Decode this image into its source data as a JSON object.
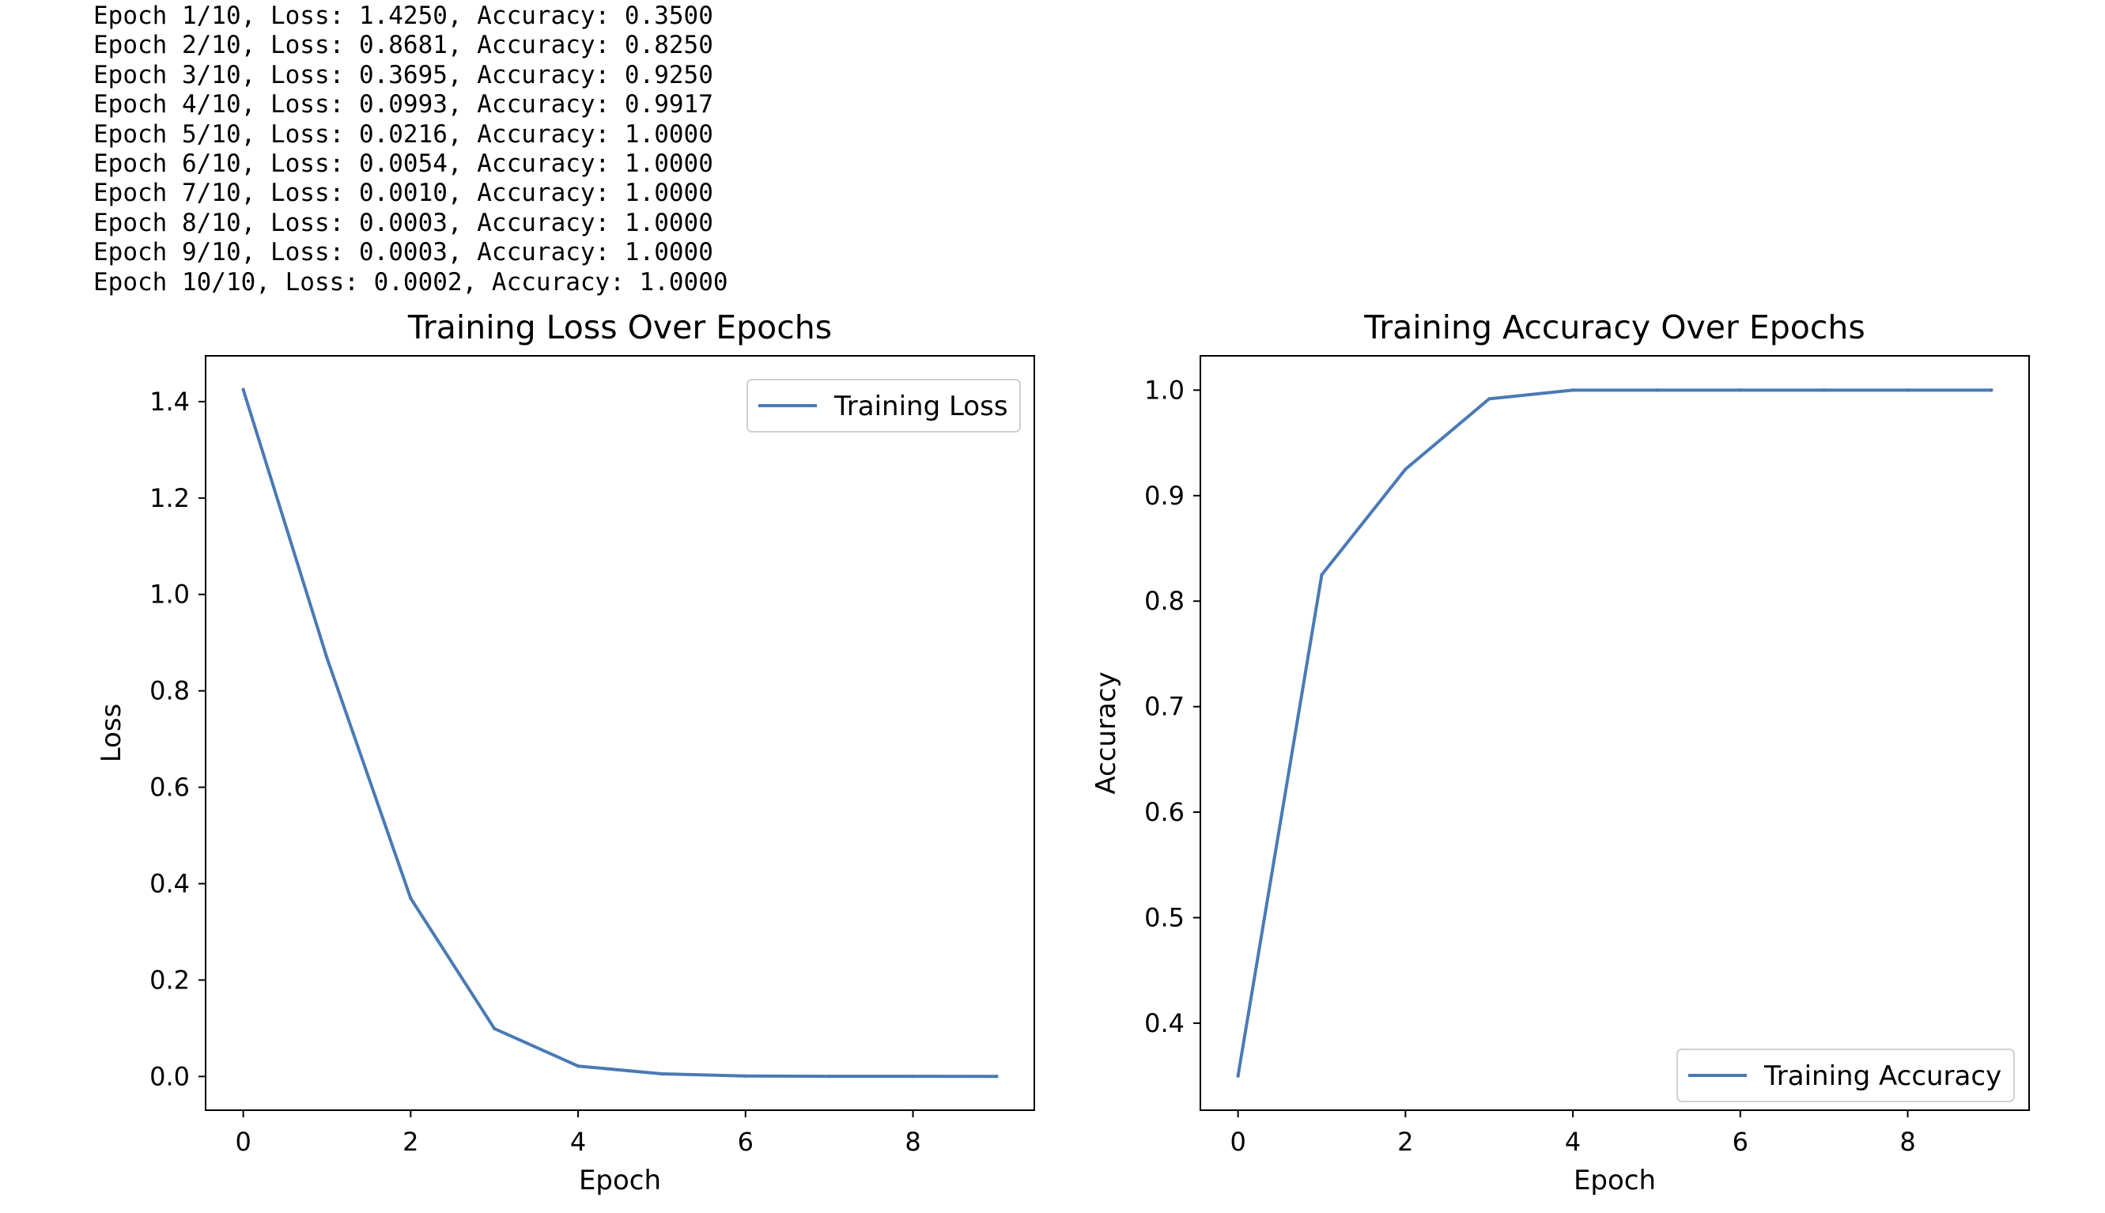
{
  "console": {
    "lines": [
      "Epoch 1/10, Loss: 1.4250, Accuracy: 0.3500",
      "Epoch 2/10, Loss: 0.8681, Accuracy: 0.8250",
      "Epoch 3/10, Loss: 0.3695, Accuracy: 0.9250",
      "Epoch 4/10, Loss: 0.0993, Accuracy: 0.9917",
      "Epoch 5/10, Loss: 0.0216, Accuracy: 1.0000",
      "Epoch 6/10, Loss: 0.0054, Accuracy: 1.0000",
      "Epoch 7/10, Loss: 0.0010, Accuracy: 1.0000",
      "Epoch 8/10, Loss: 0.0003, Accuracy: 1.0000",
      "Epoch 9/10, Loss: 0.0003, Accuracy: 1.0000",
      "Epoch 10/10, Loss: 0.0002, Accuracy: 1.0000"
    ]
  },
  "chart_data": [
    {
      "type": "line",
      "title": "Training Loss Over Epochs",
      "xlabel": "Epoch",
      "ylabel": "Loss",
      "x": [
        0,
        1,
        2,
        3,
        4,
        5,
        6,
        7,
        8,
        9
      ],
      "series": [
        {
          "name": "Training Loss",
          "values": [
            1.425,
            0.8681,
            0.3695,
            0.0993,
            0.0216,
            0.0054,
            0.001,
            0.0003,
            0.0003,
            0.0002
          ],
          "color": "#4a7ab5"
        }
      ],
      "xlim": [
        -0.45,
        9.45
      ],
      "ylim": [
        -0.07,
        1.495
      ],
      "xticks": [
        0,
        2,
        4,
        6,
        8
      ],
      "xtick_labels": [
        "0",
        "2",
        "4",
        "6",
        "8"
      ],
      "yticks": [
        0.0,
        0.2,
        0.4,
        0.6,
        0.8,
        1.0,
        1.2,
        1.4
      ],
      "ytick_labels": [
        "0.0",
        "0.2",
        "0.4",
        "0.6",
        "0.8",
        "1.0",
        "1.2",
        "1.4"
      ],
      "grid": false,
      "legend": "top-right"
    },
    {
      "type": "line",
      "title": "Training Accuracy Over Epochs",
      "xlabel": "Epoch",
      "ylabel": "Accuracy",
      "x": [
        0,
        1,
        2,
        3,
        4,
        5,
        6,
        7,
        8,
        9
      ],
      "series": [
        {
          "name": "Training Accuracy",
          "values": [
            0.35,
            0.825,
            0.925,
            0.9917,
            1.0,
            1.0,
            1.0,
            1.0,
            1.0,
            1.0
          ],
          "color": "#4a7ab5"
        }
      ],
      "xlim": [
        -0.45,
        9.45
      ],
      "ylim": [
        0.3175,
        1.0325
      ],
      "xticks": [
        0,
        2,
        4,
        6,
        8
      ],
      "xtick_labels": [
        "0",
        "2",
        "4",
        "6",
        "8"
      ],
      "yticks": [
        0.4,
        0.5,
        0.6,
        0.7,
        0.8,
        0.9,
        1.0
      ],
      "ytick_labels": [
        "0.4",
        "0.5",
        "0.6",
        "0.7",
        "0.8",
        "0.9",
        "1.0"
      ],
      "grid": false,
      "legend": "bottom-right"
    }
  ]
}
